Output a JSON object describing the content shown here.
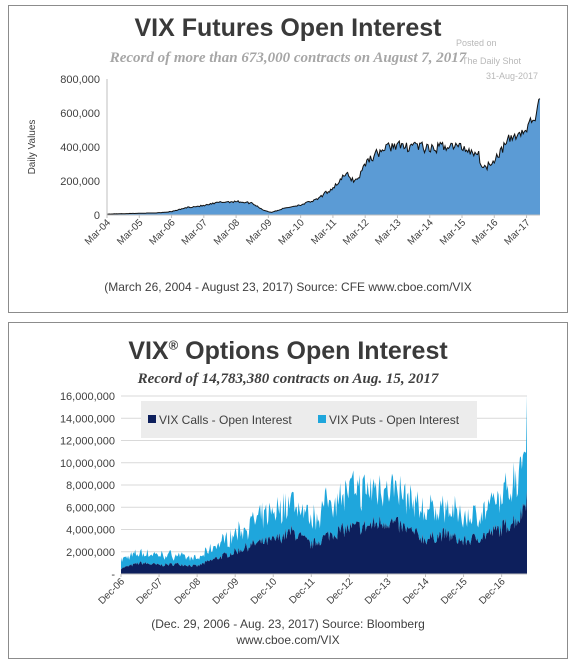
{
  "top_panel": {
    "title": "VIX Futures Open Interest",
    "subtitle": "Record of more than 673,000 contracts on August 7, 2017",
    "watermark": [
      "Posted on",
      "The Daily Shot",
      "31-Aug-2017"
    ],
    "caption": "(March 26, 2004 - August 23, 2017)   Source: CFE www.cboe.com/VIX"
  },
  "bottom_panel": {
    "title": "VIX",
    "title_sup": "®",
    "title_rest": " Options Open Interest",
    "subtitle": "Record of 14,783,380 contracts on Aug. 15, 2017",
    "caption_line1": "(Dec. 29, 2006 - Aug. 23, 2017) Source: Bloomberg",
    "caption_line2": "www.cboe.com/VIX"
  },
  "colors": {
    "futures_fill": "#5b9bd5",
    "futures_line": "#111111",
    "calls": "#0d1f5c",
    "puts": "#1fa6dc"
  },
  "chart_data": [
    {
      "type": "area",
      "ylabel": "Daily Values",
      "ylim": [
        0,
        800000
      ],
      "yticks": [
        "0",
        "200,000",
        "400,000",
        "600,000",
        "800,000"
      ],
      "x_tick_labels": [
        "Mar-04",
        "Mar-05",
        "Mar-06",
        "Mar-07",
        "Mar-08",
        "Mar-09",
        "Mar-10",
        "Mar-11",
        "Mar-12",
        "Mar-13",
        "Mar-14",
        "Mar-15",
        "Mar-16",
        "Mar-17"
      ],
      "x_range": [
        "Mar-04",
        "Aug-17"
      ],
      "grid": false,
      "series": [
        {
          "x": [
            "Mar-04",
            "Sep-04",
            "Mar-05",
            "Sep-05",
            "Mar-06",
            "Sep-06",
            "Mar-07",
            "Sep-07",
            "Mar-08",
            "Sep-08",
            "Jan-09",
            "Apr-09",
            "Sep-09",
            "Mar-10",
            "Sep-10",
            "Mar-11",
            "Aug-11",
            "Nov-11",
            "Jan-12",
            "Mar-12",
            "Sep-12",
            "Mar-13",
            "May-13",
            "Sep-13",
            "Mar-14",
            "Sep-14",
            "Mar-15",
            "Sep-15",
            "Nov-15",
            "Mar-16",
            "Sep-16",
            "Mar-17",
            "Jun-17",
            "Aug-17"
          ],
          "values": [
            5000,
            8000,
            10000,
            12000,
            20000,
            45000,
            55000,
            75000,
            80000,
            70000,
            30000,
            15000,
            40000,
            60000,
            90000,
            160000,
            240000,
            200000,
            230000,
            310000,
            380000,
            420000,
            390000,
            420000,
            380000,
            410000,
            400000,
            360000,
            270000,
            330000,
            450000,
            500000,
            580000,
            650000
          ]
        }
      ]
    },
    {
      "type": "area",
      "ylim": [
        0,
        16000000
      ],
      "yticks": [
        "-",
        "2,000,000",
        "4,000,000",
        "6,000,000",
        "8,000,000",
        "10,000,000",
        "12,000,000",
        "14,000,000",
        "16,000,000"
      ],
      "x_tick_labels": [
        "Dec-06",
        "Dec-07",
        "Dec-08",
        "Dec-09",
        "Dec-10",
        "Dec-11",
        "Dec-12",
        "Dec-13",
        "Dec-14",
        "Dec-15",
        "Dec-16"
      ],
      "x_range": [
        "Dec-06",
        "Aug-17"
      ],
      "legend_position": "top-left",
      "stacked": true,
      "series": [
        {
          "name": "VIX Calls - Open Interest",
          "x": [
            "Dec-06",
            "Jun-07",
            "Dec-07",
            "Jun-08",
            "Dec-08",
            "Jun-09",
            "Dec-09",
            "Jun-10",
            "Dec-10",
            "Jun-11",
            "Dec-11",
            "Jun-12",
            "Dec-12",
            "Jun-13",
            "Dec-13",
            "Jun-14",
            "Dec-14",
            "Jun-15",
            "Dec-15",
            "Jun-16",
            "Dec-16",
            "Jun-17",
            "Aug-17"
          ],
          "values": [
            500000,
            1000000,
            800000,
            900000,
            700000,
            1400000,
            2000000,
            2700000,
            3000000,
            3800000,
            2600000,
            3600000,
            4100000,
            4300000,
            4800000,
            4000000,
            3100000,
            3600000,
            2900000,
            3400000,
            4100000,
            5200000,
            7200000
          ]
        },
        {
          "name": "VIX Puts - Open Interest",
          "x": [
            "Dec-06",
            "Jun-07",
            "Dec-07",
            "Jun-08",
            "Dec-08",
            "Jun-09",
            "Dec-09",
            "Jun-10",
            "Dec-10",
            "Jun-11",
            "Dec-11",
            "Jun-12",
            "Dec-12",
            "Jun-13",
            "Dec-13",
            "Jun-14",
            "Dec-14",
            "Jun-15",
            "Dec-15",
            "Jun-16",
            "Dec-16",
            "Jun-17",
            "Aug-17"
          ],
          "values": [
            800000,
            900000,
            900000,
            800000,
            600000,
            1200000,
            1600000,
            2000000,
            2500000,
            2800000,
            2200000,
            3100000,
            3400000,
            3200000,
            3300000,
            2800000,
            2500000,
            2400000,
            2200000,
            2100000,
            2700000,
            4200000,
            7500000
          ]
        }
      ]
    }
  ]
}
